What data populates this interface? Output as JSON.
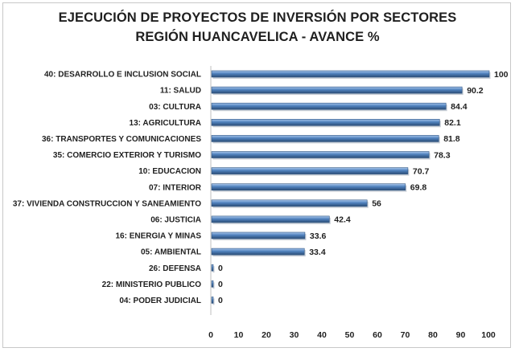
{
  "chart_data": {
    "type": "bar",
    "orientation": "horizontal",
    "title": "EJECUCIÓN DE PROYECTOS DE INVERSIÓN POR SECTORES",
    "subtitle": "REGIÓN HUANCAVELICA - AVANCE %",
    "categories": [
      "40: DESARROLLO E INCLUSION SOCIAL",
      "11: SALUD",
      "03: CULTURA",
      "13: AGRICULTURA",
      "36: TRANSPORTES Y COMUNICACIONES",
      "35: COMERCIO EXTERIOR Y TURISMO",
      "10: EDUCACION",
      "07: INTERIOR",
      "37: VIVIENDA CONSTRUCCION Y SANEAMIENTO",
      "06: JUSTICIA",
      "16: ENERGIA Y MINAS",
      "05: AMBIENTAL",
      "26: DEFENSA",
      "22: MINISTERIO PUBLICO",
      "04: PODER JUDICIAL"
    ],
    "values": [
      100,
      90.2,
      84.4,
      82.1,
      81.8,
      78.3,
      70.7,
      69.8,
      56,
      42.4,
      33.6,
      33.4,
      0,
      0,
      0
    ],
    "value_labels": [
      "100",
      "90.2",
      "84.4",
      "82.1",
      "81.8",
      "78.3",
      "70.7",
      "69.8",
      "56",
      "42.4",
      "33.6",
      "33.4",
      "0",
      "0",
      "0"
    ],
    "xlim": [
      0,
      100
    ],
    "xticks": [
      0,
      10,
      20,
      30,
      40,
      50,
      60,
      70,
      80,
      90,
      100
    ],
    "grid": false,
    "legend": "none",
    "colors": {
      "bar_light": "#8fb4e3",
      "bar_mid": "#4f81bd",
      "bar_dark": "#2c4d76",
      "axis": "#bfbfbf"
    }
  }
}
